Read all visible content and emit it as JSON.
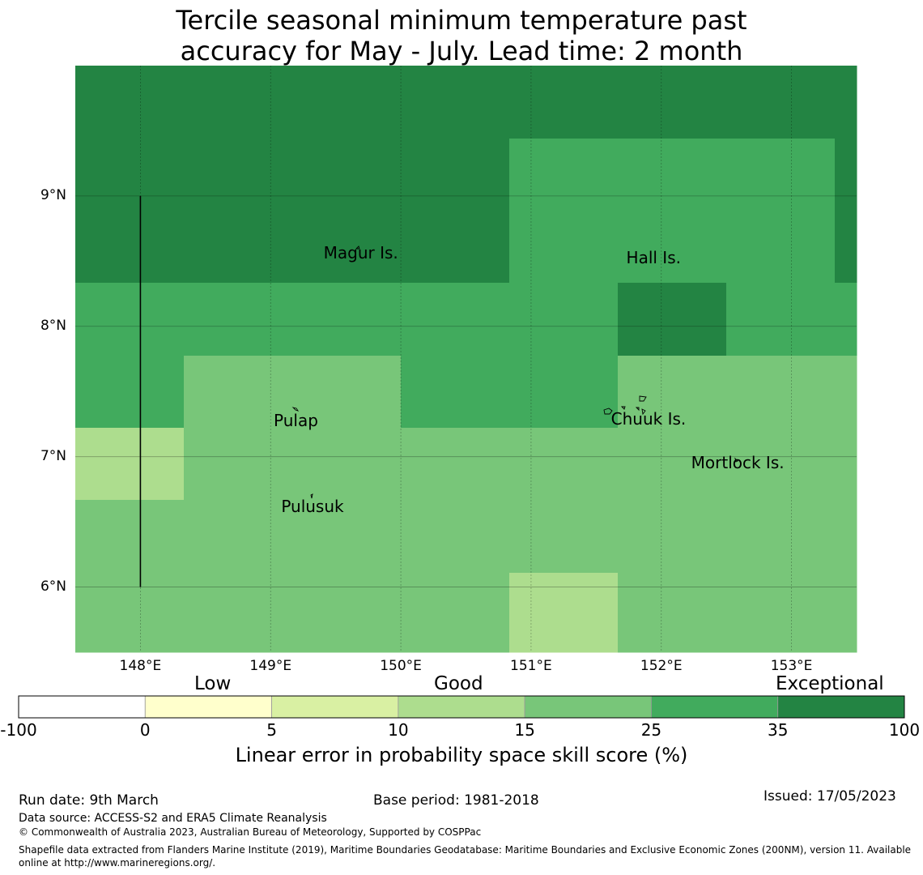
{
  "title_line1": "Tercile seasonal minimum temperature past",
  "title_line2": "accuracy for May - July. Lead time: 2 month",
  "colors": {
    "bin_0": "#ffffff",
    "bin_1": "#ffffcc",
    "bin_2": "#d9f0a3",
    "bin_3": "#addd8e",
    "bin_4": "#78c679",
    "bin_5": "#41ab5d",
    "bin_6": "#238443"
  },
  "map": {
    "lon_range": [
      147.5,
      153.5
    ],
    "lat_range": [
      5.5,
      10.0
    ],
    "cell_size_deg": 0.833,
    "grid_rows_north_to_south": [
      [
        6,
        6,
        6,
        6,
        6,
        6,
        6,
        6
      ],
      [
        6,
        6,
        6,
        6,
        5,
        5,
        5,
        6
      ],
      [
        6,
        6,
        6,
        6,
        5,
        5,
        5,
        6
      ],
      [
        5,
        5,
        5,
        5,
        5,
        6,
        5,
        5
      ],
      [
        5,
        4,
        4,
        5,
        5,
        4,
        4,
        4
      ],
      [
        3,
        4,
        4,
        4,
        4,
        4,
        4,
        4
      ],
      [
        4,
        4,
        4,
        4,
        4,
        4,
        4,
        4
      ],
      [
        4,
        4,
        4,
        4,
        3,
        4,
        4,
        4
      ]
    ],
    "lat_ticks": [
      {
        "value": 9,
        "label": "9°N"
      },
      {
        "value": 8,
        "label": "8°N"
      },
      {
        "value": 7,
        "label": "7°N"
      },
      {
        "value": 6,
        "label": "6°N"
      }
    ],
    "lon_ticks": [
      {
        "value": 148,
        "label": "148°E"
      },
      {
        "value": 149,
        "label": "149°E"
      },
      {
        "value": 150,
        "label": "150°E"
      },
      {
        "value": 151,
        "label": "151°E"
      },
      {
        "value": 152,
        "label": "152°E"
      },
      {
        "value": 153,
        "label": "153°E"
      }
    ],
    "boundary_line": {
      "lon": 148.0,
      "lat_from": 6.0,
      "lat_to": 9.0
    },
    "places": [
      {
        "name": "Magur Is.",
        "lon": 149.68,
        "lat": 8.53
      },
      {
        "name": "Hall Is.",
        "lon": 151.98,
        "lat": 8.49
      },
      {
        "name": "Pulap",
        "lon": 149.21,
        "lat": 7.24
      },
      {
        "name": "Chuuk Is.",
        "lon": 151.9,
        "lat": 7.25
      },
      {
        "name": "Mortlock Is.",
        "lon": 152.59,
        "lat": 6.92
      },
      {
        "name": "Pulusuk",
        "lon": 149.33,
        "lat": 6.58
      }
    ]
  },
  "colorbar": {
    "categories": [
      "Low",
      "Good",
      "Exceptional"
    ],
    "ticks": [
      "-100",
      "0",
      "5",
      "10",
      "15",
      "25",
      "35",
      "100"
    ],
    "title": "Linear error in probability space skill score (%)"
  },
  "footer": {
    "run_date": "Run date: 9th March",
    "base_period": "Base period: 1981-2018",
    "issued": "Issued: 17/05/2023",
    "data_source": "Data source: ACCESS-S2 and ERA5 Climate Reanalysis",
    "copyright": "© Commonwealth of Australia 2023, Australian Bureau of Meteorology, Supported by COSPPac",
    "shapefile_line1": "Shapefile data extracted from Flanders Marine Institute (2019), Maritime Boundaries Geodatabase: Maritime Boundaries and Exclusive Economic Zones (200NM), version 11. Available",
    "shapefile_line2": "online at http://www.marineregions.org/."
  }
}
